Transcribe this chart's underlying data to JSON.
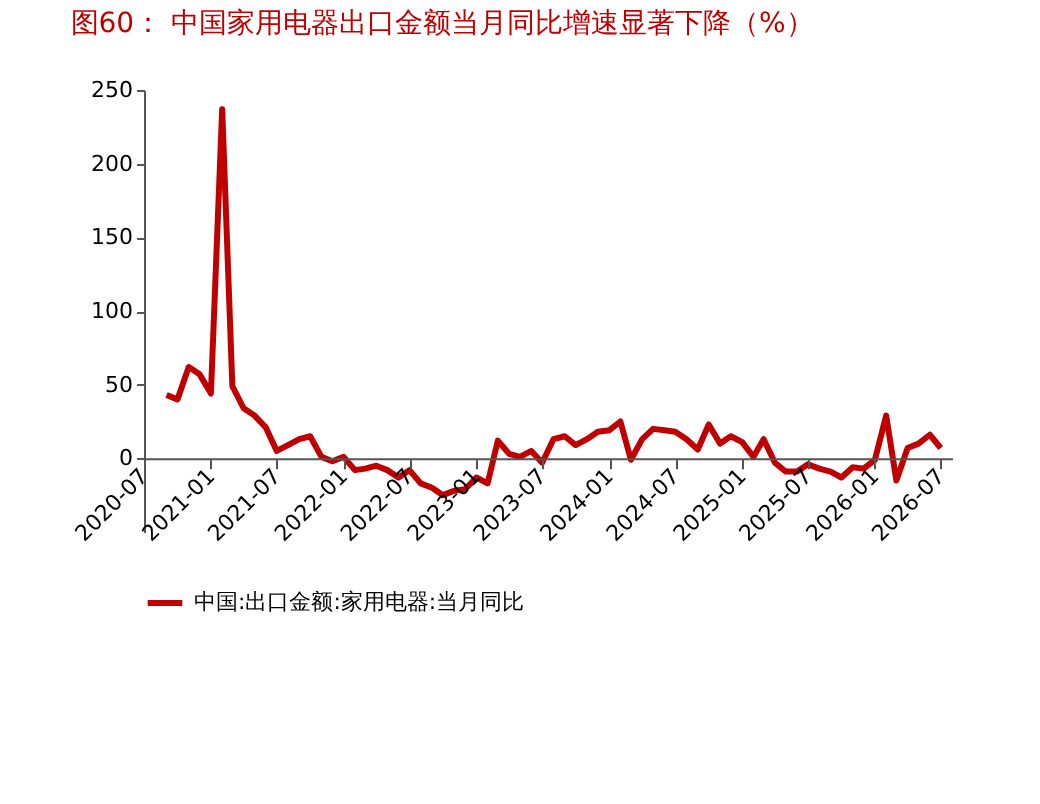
{
  "chart_data": {
    "type": "line",
    "title": "图60：  中国家用电器出口金额当月同比增速显著下降（%）",
    "x": [
      "2020-09",
      "2020-10",
      "2020-11",
      "2020-12",
      "2021-01",
      "2021-02",
      "2021-03",
      "2021-04",
      "2021-05",
      "2021-06",
      "2021-07",
      "2021-08",
      "2021-09",
      "2021-10",
      "2021-11",
      "2021-12",
      "2022-01",
      "2022-02",
      "2022-03",
      "2022-04",
      "2022-05",
      "2022-06",
      "2022-07",
      "2022-08",
      "2022-09",
      "2022-10",
      "2022-11",
      "2022-12",
      "2023-01",
      "2023-02",
      "2023-03",
      "2023-04",
      "2023-05",
      "2023-06",
      "2023-07",
      "2023-08",
      "2023-09",
      "2023-10",
      "2023-11",
      "2023-12",
      "2024-01",
      "2024-02",
      "2024-03",
      "2024-04",
      "2024-05",
      "2024-06",
      "2024-07",
      "2024-08",
      "2024-09",
      "2024-10",
      "2024-11",
      "2024-12",
      "2025-01",
      "2025-02",
      "2025-03",
      "2025-04",
      "2025-05",
      "2025-06",
      "2025-07",
      "2025-08",
      "2025-09",
      "2025-10",
      "2025-11",
      "2025-12",
      "2026-01",
      "2026-02",
      "2026-03",
      "2026-04",
      "2026-05",
      "2026-06",
      "2026-07"
    ],
    "series": [
      {
        "name": "中国:出口金额:家用电器:当月同比",
        "color": "#c00000",
        "values": [
          43,
          40,
          62,
          57,
          44,
          237,
          49,
          34,
          29,
          21,
          5,
          9,
          13,
          15,
          1,
          -2,
          1,
          -8,
          -7,
          -5,
          -8,
          -13,
          -8,
          -17,
          -20,
          -25,
          -22,
          -21,
          -13,
          -17,
          12,
          3,
          1,
          5,
          -3,
          13,
          15,
          9,
          13,
          18,
          19,
          25,
          -1,
          13,
          20,
          19,
          18,
          13,
          6,
          23,
          10,
          15,
          11,
          1,
          13,
          -3,
          -9,
          -9,
          -4,
          -7,
          -9,
          -13,
          -6,
          -7,
          -1,
          29,
          -15,
          7,
          10,
          16,
          7
        ]
      }
    ],
    "xlim": [
      "2020-07",
      "2026-08"
    ],
    "xticks": [
      {
        "value": "2020-07",
        "label": "2020-07"
      },
      {
        "value": "2021-01",
        "label": "2021-01"
      },
      {
        "value": "2021-07",
        "label": "2021-07"
      },
      {
        "value": "2022-01",
        "label": "2022-01"
      },
      {
        "value": "2022-07",
        "label": "2022-07"
      },
      {
        "value": "2023-01",
        "label": "2023-01"
      },
      {
        "value": "2023-07",
        "label": "2023-07"
      },
      {
        "value": "2024-01",
        "label": "2024-01"
      },
      {
        "value": "2024-07",
        "label": "2024-07"
      },
      {
        "value": "2025-01",
        "label": "2025-01"
      },
      {
        "value": "2025-07",
        "label": "2025-07"
      },
      {
        "value": "2026-01",
        "label": "2026-01"
      },
      {
        "value": "2026-07",
        "label": "2026-07"
      }
    ],
    "ylim": [
      -50,
      250
    ],
    "yticks": [
      0,
      50,
      100,
      150,
      200,
      250
    ],
    "grid": false,
    "legend": "bottom",
    "line_style": "solid",
    "marker": "none"
  }
}
